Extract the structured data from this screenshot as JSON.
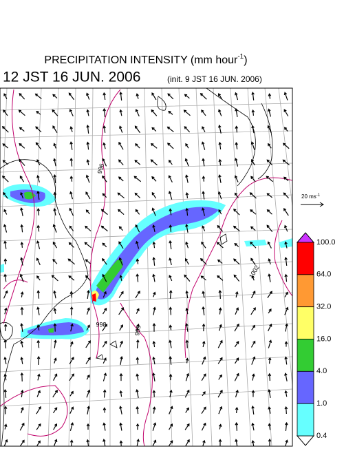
{
  "header": {
    "title": "PRECIPITATION INTENSITY (mm hour",
    "title_sup": "-1",
    "title_close": ")",
    "valid_time": "12 JST 16 JUN. 2006",
    "init_time": "(init. 9 JST 16 JUN. 2006)"
  },
  "wind_scale": {
    "label": "20 ms",
    "sup": "-1"
  },
  "contour_labels": [
    "996",
    "1002",
    "998",
    "999"
  ],
  "colorbar": {
    "labels": [
      "100.0",
      "64.0",
      "32.0",
      "16.0",
      "4.0",
      "1.0",
      "0.4"
    ],
    "colors": [
      "#ff0000",
      "#ff9933",
      "#ffff66",
      "#33cc33",
      "#6666ff",
      "#66ffff"
    ],
    "over_color": "#cc33ff",
    "under_color": "#ffffff"
  }
}
